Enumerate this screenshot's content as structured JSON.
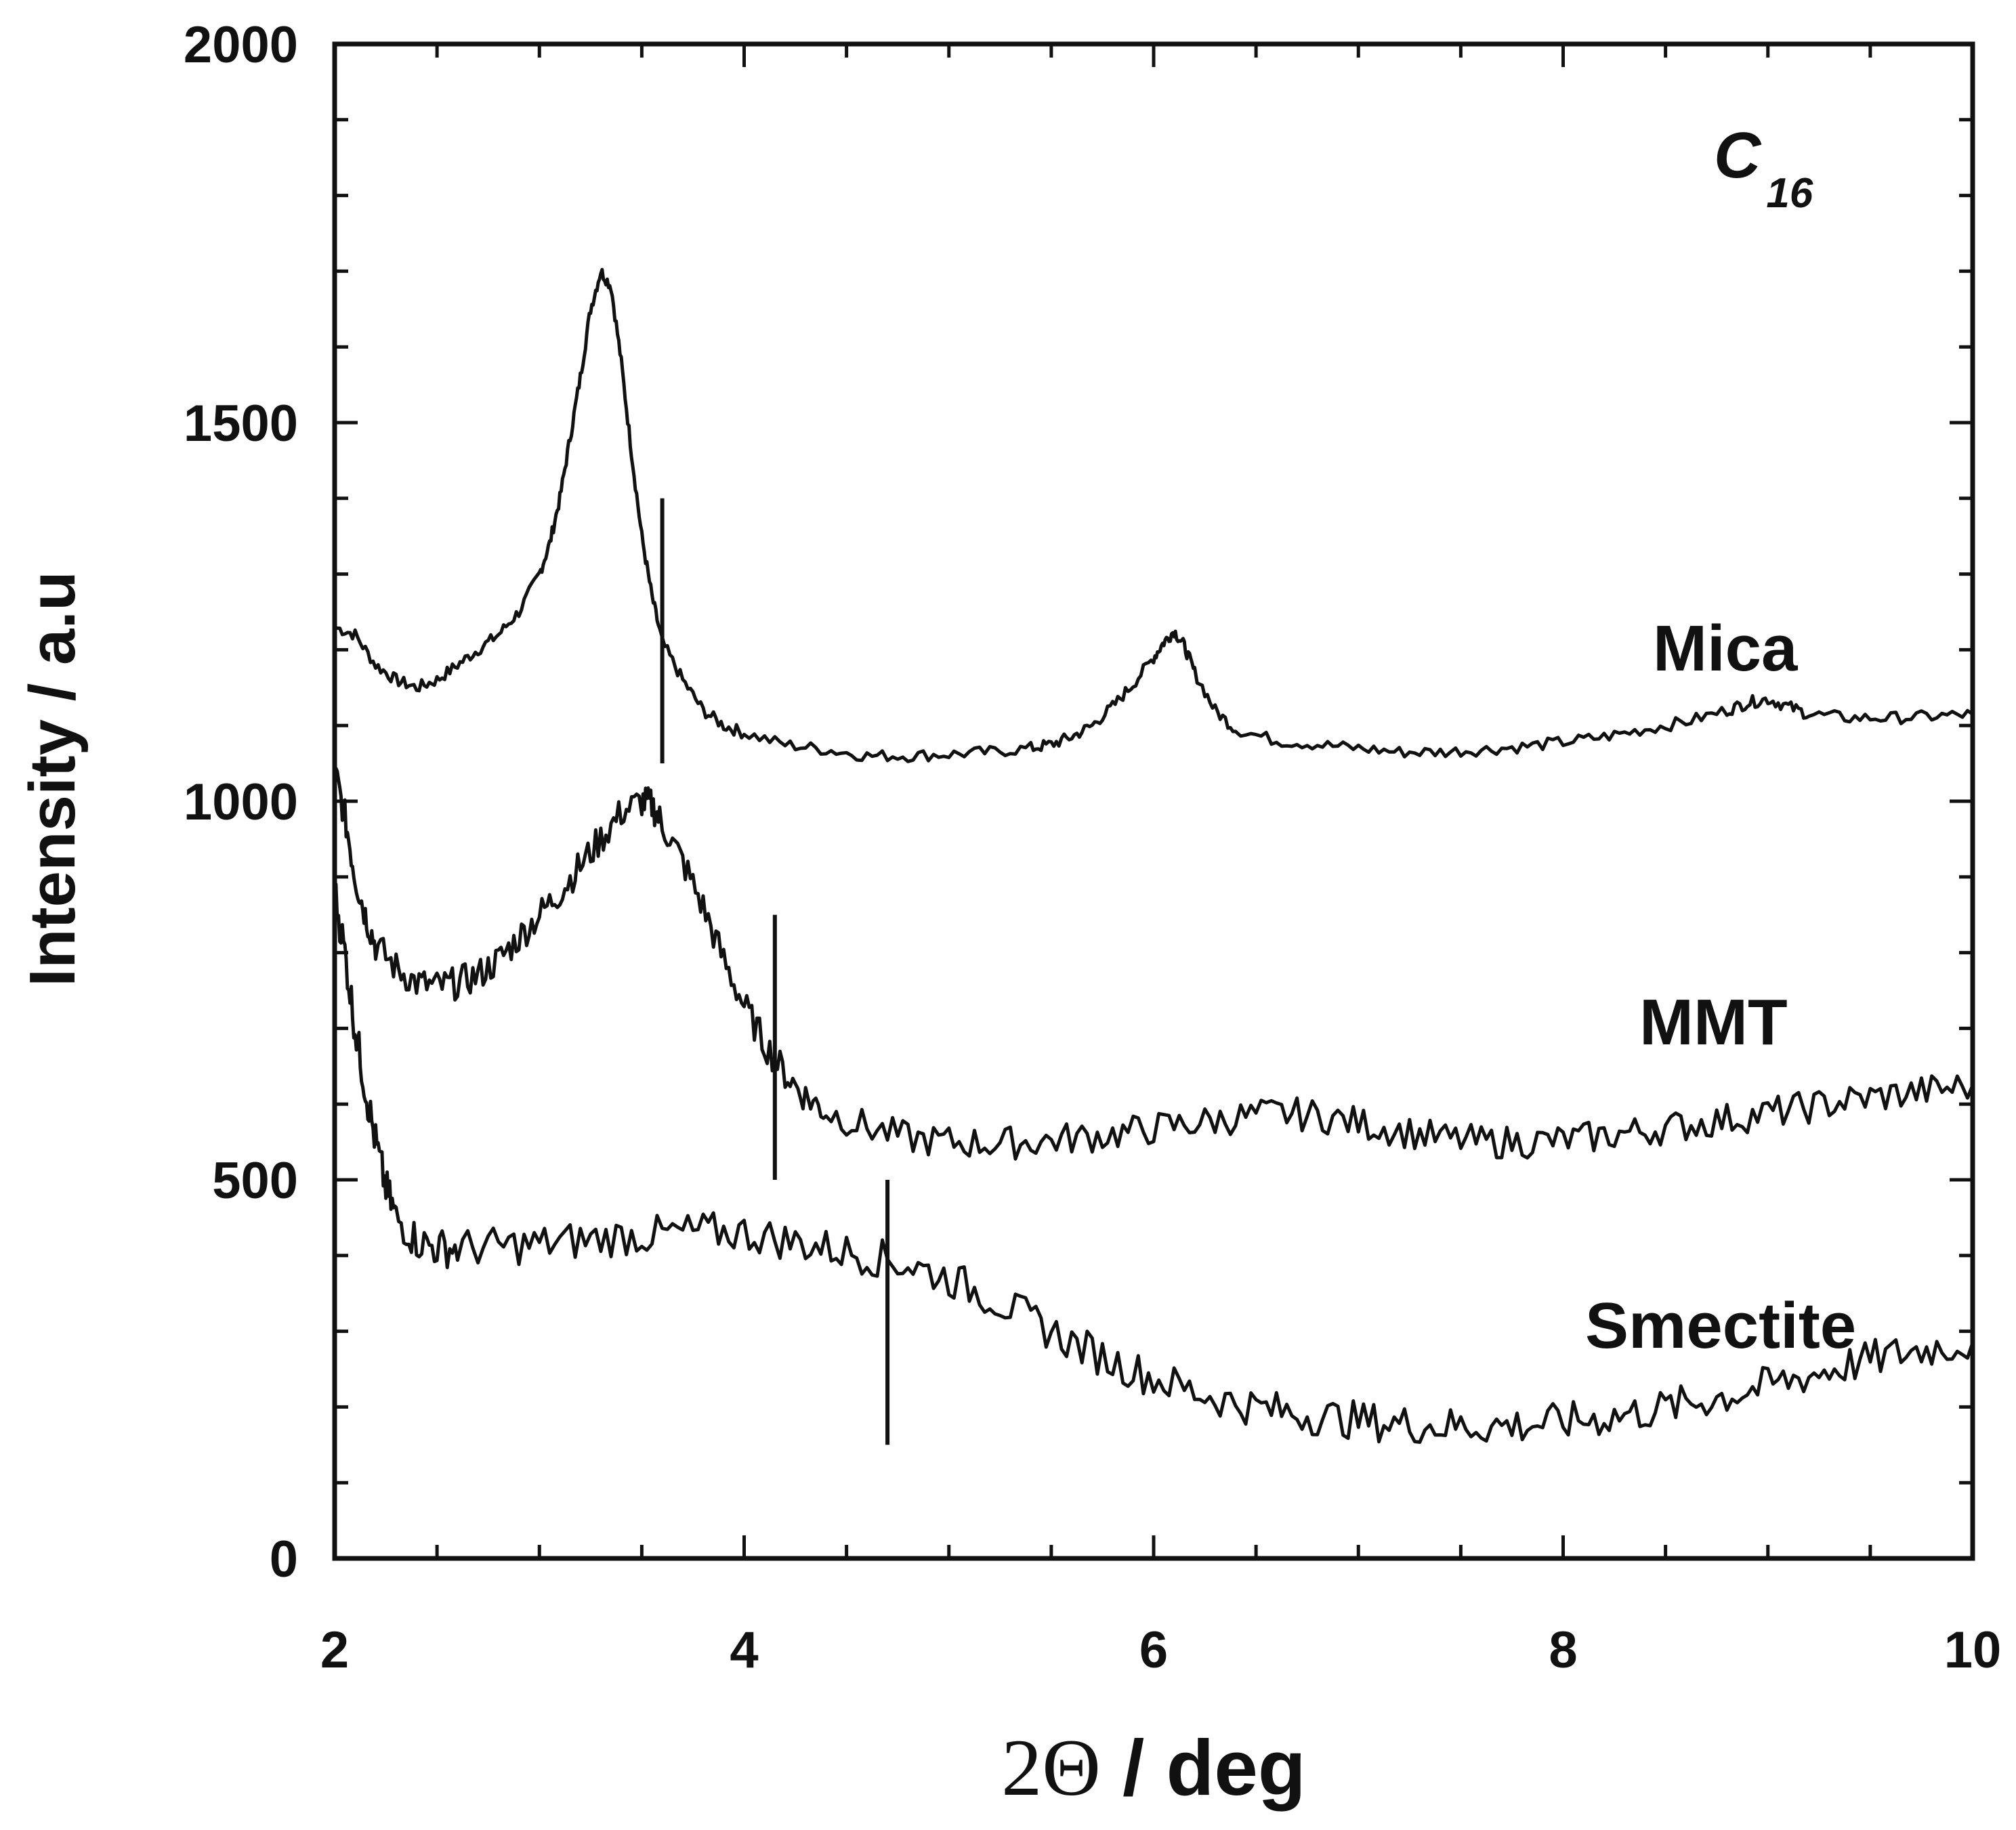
{
  "chart_data": {
    "type": "line",
    "title": "",
    "annotation": {
      "main": "C",
      "subscript": "16"
    },
    "xlabel": {
      "prefix": "2Θ",
      "suffix": " / deg"
    },
    "ylabel": "Intensity / a.u",
    "xlim": [
      2,
      10
    ],
    "ylim": [
      0,
      2000
    ],
    "x_ticks": [
      "2",
      "4",
      "6",
      "8",
      "10"
    ],
    "y_ticks": [
      "0",
      "500",
      "1000",
      "1500",
      "2000"
    ],
    "grid": false,
    "series": [
      {
        "name": "Mica",
        "marker_x": 3.6,
        "marker_y_range": [
          1050,
          1400
        ],
        "points": [
          [
            2.0,
            1230
          ],
          [
            2.1,
            1220
          ],
          [
            2.2,
            1180
          ],
          [
            2.3,
            1160
          ],
          [
            2.4,
            1150
          ],
          [
            2.5,
            1160
          ],
          [
            2.6,
            1180
          ],
          [
            2.7,
            1200
          ],
          [
            2.8,
            1220
          ],
          [
            2.9,
            1250
          ],
          [
            3.0,
            1300
          ],
          [
            3.05,
            1340
          ],
          [
            3.1,
            1400
          ],
          [
            3.15,
            1480
          ],
          [
            3.2,
            1560
          ],
          [
            3.25,
            1650
          ],
          [
            3.3,
            1700
          ],
          [
            3.35,
            1680
          ],
          [
            3.4,
            1580
          ],
          [
            3.45,
            1460
          ],
          [
            3.5,
            1350
          ],
          [
            3.55,
            1270
          ],
          [
            3.6,
            1210
          ],
          [
            3.7,
            1160
          ],
          [
            3.8,
            1120
          ],
          [
            3.9,
            1100
          ],
          [
            4.0,
            1090
          ],
          [
            4.2,
            1075
          ],
          [
            4.4,
            1068
          ],
          [
            4.6,
            1060
          ],
          [
            4.8,
            1060
          ],
          [
            5.0,
            1062
          ],
          [
            5.2,
            1065
          ],
          [
            5.4,
            1070
          ],
          [
            5.5,
            1075
          ],
          [
            5.6,
            1085
          ],
          [
            5.7,
            1100
          ],
          [
            5.8,
            1125
          ],
          [
            5.9,
            1155
          ],
          [
            6.0,
            1190
          ],
          [
            6.05,
            1210
          ],
          [
            6.1,
            1225
          ],
          [
            6.15,
            1205
          ],
          [
            6.2,
            1170
          ],
          [
            6.3,
            1120
          ],
          [
            6.4,
            1095
          ],
          [
            6.6,
            1080
          ],
          [
            6.8,
            1075
          ],
          [
            7.0,
            1070
          ],
          [
            7.2,
            1065
          ],
          [
            7.4,
            1065
          ],
          [
            7.6,
            1068
          ],
          [
            7.8,
            1072
          ],
          [
            8.0,
            1078
          ],
          [
            8.2,
            1085
          ],
          [
            8.4,
            1095
          ],
          [
            8.6,
            1105
          ],
          [
            8.8,
            1120
          ],
          [
            8.9,
            1130
          ],
          [
            9.0,
            1135
          ],
          [
            9.1,
            1125
          ],
          [
            9.2,
            1115
          ],
          [
            9.4,
            1110
          ],
          [
            9.6,
            1110
          ],
          [
            9.8,
            1112
          ],
          [
            10.0,
            1115
          ]
        ]
      },
      {
        "name": "MMT",
        "marker_x": 4.15,
        "marker_y_range": [
          500,
          850
        ],
        "points": [
          [
            2.0,
            1040
          ],
          [
            2.05,
            980
          ],
          [
            2.1,
            900
          ],
          [
            2.15,
            850
          ],
          [
            2.2,
            810
          ],
          [
            2.3,
            780
          ],
          [
            2.4,
            760
          ],
          [
            2.5,
            755
          ],
          [
            2.6,
            760
          ],
          [
            2.7,
            770
          ],
          [
            2.8,
            790
          ],
          [
            2.9,
            820
          ],
          [
            3.0,
            850
          ],
          [
            3.1,
            880
          ],
          [
            3.2,
            915
          ],
          [
            3.3,
            950
          ],
          [
            3.4,
            985
          ],
          [
            3.5,
            1000
          ],
          [
            3.55,
            995
          ],
          [
            3.6,
            970
          ],
          [
            3.7,
            920
          ],
          [
            3.8,
            860
          ],
          [
            3.9,
            790
          ],
          [
            4.0,
            730
          ],
          [
            4.1,
            680
          ],
          [
            4.2,
            640
          ],
          [
            4.3,
            610
          ],
          [
            4.4,
            590
          ],
          [
            4.6,
            570
          ],
          [
            4.8,
            555
          ],
          [
            5.0,
            550
          ],
          [
            5.2,
            548
          ],
          [
            5.4,
            550
          ],
          [
            5.6,
            555
          ],
          [
            5.8,
            560
          ],
          [
            6.0,
            568
          ],
          [
            6.2,
            575
          ],
          [
            6.4,
            582
          ],
          [
            6.6,
            588
          ],
          [
            6.8,
            585
          ],
          [
            7.0,
            575
          ],
          [
            7.2,
            565
          ],
          [
            7.4,
            555
          ],
          [
            7.6,
            550
          ],
          [
            7.8,
            550
          ],
          [
            8.0,
            552
          ],
          [
            8.2,
            558
          ],
          [
            8.4,
            565
          ],
          [
            8.6,
            572
          ],
          [
            8.8,
            580
          ],
          [
            9.0,
            588
          ],
          [
            9.2,
            596
          ],
          [
            9.4,
            605
          ],
          [
            9.6,
            612
          ],
          [
            9.8,
            618
          ],
          [
            10.0,
            625
          ]
        ]
      },
      {
        "name": "Smectite",
        "marker_x": 4.7,
        "marker_y_range": [
          150,
          500
        ],
        "points": [
          [
            2.0,
            880
          ],
          [
            2.05,
            800
          ],
          [
            2.1,
            700
          ],
          [
            2.15,
            620
          ],
          [
            2.2,
            550
          ],
          [
            2.25,
            490
          ],
          [
            2.3,
            450
          ],
          [
            2.4,
            420
          ],
          [
            2.5,
            410
          ],
          [
            2.6,
            410
          ],
          [
            2.8,
            412
          ],
          [
            3.0,
            415
          ],
          [
            3.2,
            420
          ],
          [
            3.4,
            425
          ],
          [
            3.6,
            428
          ],
          [
            3.8,
            432
          ],
          [
            4.0,
            430
          ],
          [
            4.2,
            420
          ],
          [
            4.4,
            410
          ],
          [
            4.6,
            400
          ],
          [
            4.8,
            388
          ],
          [
            5.0,
            370
          ],
          [
            5.2,
            345
          ],
          [
            5.4,
            315
          ],
          [
            5.6,
            285
          ],
          [
            5.8,
            260
          ],
          [
            6.0,
            238
          ],
          [
            6.2,
            220
          ],
          [
            6.4,
            205
          ],
          [
            6.6,
            195
          ],
          [
            6.8,
            188
          ],
          [
            7.0,
            182
          ],
          [
            7.2,
            178
          ],
          [
            7.4,
            175
          ],
          [
            7.6,
            175
          ],
          [
            7.8,
            176
          ],
          [
            8.0,
            180
          ],
          [
            8.2,
            186
          ],
          [
            8.4,
            194
          ],
          [
            8.6,
            204
          ],
          [
            8.8,
            215
          ],
          [
            9.0,
            228
          ],
          [
            9.2,
            242
          ],
          [
            9.4,
            256
          ],
          [
            9.6,
            268
          ],
          [
            9.8,
            278
          ],
          [
            10.0,
            285
          ]
        ]
      }
    ]
  }
}
